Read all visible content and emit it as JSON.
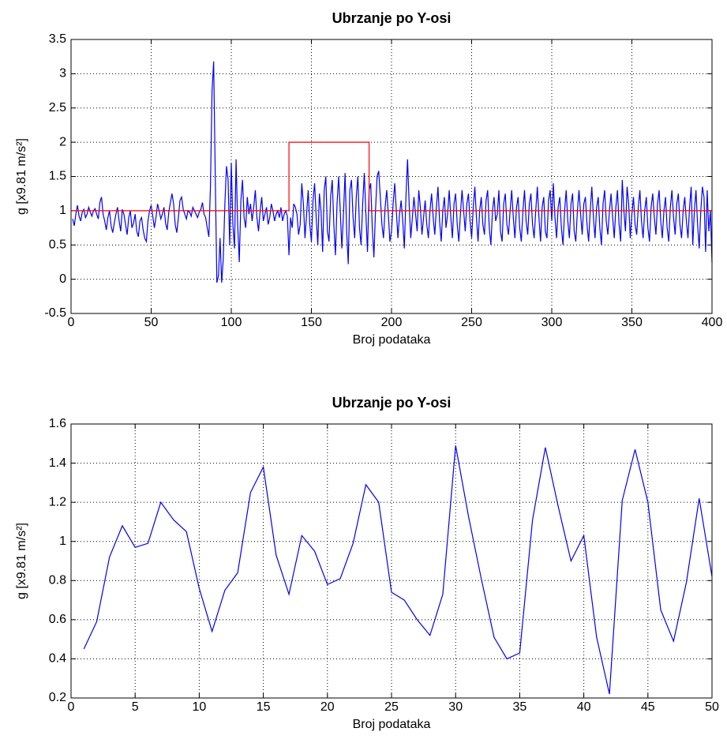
{
  "chart_data": [
    {
      "type": "line",
      "title": "Ubrzanje po Y-osi",
      "xlabel": "Broj podataka",
      "ylabel": "g [x9.81 m/s²]",
      "xlim": [
        0,
        400
      ],
      "xticks": [
        0,
        50,
        100,
        150,
        200,
        250,
        300,
        350,
        400
      ],
      "ylim": [
        -0.5,
        3.5
      ],
      "yticks": [
        -0.5,
        0,
        0.5,
        1,
        1.5,
        2,
        2.5,
        3,
        3.5
      ],
      "grid": true,
      "series": [
        {
          "color": "#0000ff",
          "x": [
            1,
            2,
            3,
            4,
            5,
            6,
            7,
            8,
            9,
            10,
            11,
            12,
            13,
            14,
            15,
            16,
            17,
            18,
            19,
            20,
            21,
            22,
            23,
            24,
            25,
            26,
            27,
            28,
            29,
            30,
            31,
            32,
            33,
            34,
            35,
            36,
            37,
            38,
            39,
            40,
            41,
            42,
            43,
            44,
            45,
            46,
            47,
            48,
            49,
            50,
            51,
            52,
            53,
            54,
            55,
            56,
            57,
            58,
            59,
            60,
            61,
            62,
            63,
            64,
            65,
            66,
            67,
            68,
            69,
            70,
            71,
            72,
            73,
            74,
            75,
            76,
            77,
            78,
            79,
            80,
            81,
            82,
            83,
            84,
            85,
            86,
            87,
            88,
            89,
            90,
            91,
            92,
            93,
            94,
            95,
            96,
            97,
            98,
            99,
            100,
            101,
            102,
            103,
            104,
            105,
            106,
            107,
            108,
            109,
            110,
            111,
            112,
            113,
            114,
            115,
            116,
            117,
            118,
            119,
            120,
            121,
            122,
            123,
            124,
            125,
            126,
            127,
            128,
            129,
            130,
            131,
            132,
            133,
            134,
            135,
            136,
            137,
            138,
            139,
            140,
            141,
            142,
            143,
            144,
            145,
            146,
            147,
            148,
            149,
            150,
            151,
            152,
            153,
            154,
            155,
            156,
            157,
            158,
            159,
            160,
            161,
            162,
            163,
            164,
            165,
            166,
            167,
            168,
            169,
            170,
            171,
            172,
            173,
            174,
            175,
            176,
            177,
            178,
            179,
            180,
            181,
            182,
            183,
            184,
            185,
            186,
            187,
            188,
            189,
            190,
            191,
            192,
            193,
            194,
            195,
            196,
            197,
            198,
            199,
            200,
            201,
            202,
            203,
            204,
            205,
            206,
            207,
            208,
            209,
            210,
            211,
            212,
            213,
            214,
            215,
            216,
            217,
            218,
            219,
            220,
            221,
            222,
            223,
            224,
            225,
            226,
            227,
            228,
            229,
            230,
            231,
            232,
            233,
            234,
            235,
            236,
            237,
            238,
            239,
            240,
            241,
            242,
            243,
            244,
            245,
            246,
            247,
            248,
            249,
            250,
            251,
            252,
            253,
            254,
            255,
            256,
            257,
            258,
            259,
            260,
            261,
            262,
            263,
            264,
            265,
            266,
            267,
            268,
            269,
            270,
            271,
            272,
            273,
            274,
            275,
            276,
            277,
            278,
            279,
            280,
            281,
            282,
            283,
            284,
            285,
            286,
            287,
            288,
            289,
            290,
            291,
            292,
            293,
            294,
            295,
            296,
            297,
            298,
            299,
            300,
            301,
            302,
            303,
            304,
            305,
            306,
            307,
            308,
            309,
            310,
            311,
            312,
            313,
            314,
            315,
            316,
            317,
            318,
            319,
            320,
            321,
            322,
            323,
            324,
            325,
            326,
            327,
            328,
            329,
            330,
            331,
            332,
            333,
            334,
            335,
            336,
            337,
            338,
            339,
            340,
            341,
            342,
            343,
            344,
            345,
            346,
            347,
            348,
            349,
            350,
            351,
            352,
            353,
            354,
            355,
            356,
            357,
            358,
            359,
            360,
            361,
            362,
            363,
            364,
            365,
            366,
            367,
            368,
            369,
            370,
            371,
            372,
            373,
            374,
            375,
            376,
            377,
            378,
            379,
            380,
            381,
            382,
            383,
            384,
            385,
            386,
            387,
            388,
            389,
            390,
            391,
            392,
            393,
            394,
            395,
            396,
            397,
            398,
            399,
            400
          ],
          "values": [
            0.88,
            0.78,
            0.95,
            1.08,
            0.92,
            0.85,
            0.98,
            1.02,
            0.9,
            0.95,
            1.05,
            0.98,
            0.92,
            1.0,
            1.03,
            0.95,
            0.88,
            1.12,
            1.2,
            0.95,
            0.85,
            0.72,
            0.9,
            1.0,
            0.78,
            0.68,
            0.82,
            0.95,
            1.05,
            0.85,
            0.7,
            1.02,
            0.95,
            0.8,
            0.65,
            0.9,
            1.0,
            0.75,
            0.82,
            0.95,
            0.7,
            0.62,
            0.85,
            0.9,
            0.72,
            0.6,
            0.55,
            0.85,
            1.0,
            1.08,
            0.92,
            0.75,
            0.9,
            1.1,
            1.0,
            0.88,
            0.95,
            1.05,
            0.82,
            0.72,
            0.98,
            1.12,
            1.25,
            1.1,
            0.8,
            0.68,
            0.9,
            1.15,
            1.2,
            1.02,
            0.95,
            0.88,
            1.0,
            0.98,
            0.92,
            1.05,
            1.0,
            0.95,
            0.9,
            0.98,
            1.02,
            1.12,
            0.95,
            0.9,
            0.75,
            0.62,
            1.35,
            2.75,
            3.18,
            1.5,
            -0.05,
            0.05,
            0.6,
            -0.05,
            0.3,
            1.1,
            1.65,
            1.45,
            0.5,
            1.7,
            0.8,
            0.45,
            1.75,
            0.8,
            0.25,
            1.15,
            1.45,
            0.9,
            0.75,
            1.2,
            0.95,
            1.1,
            0.85,
            1.05,
            1.3,
            0.9,
            0.7,
            1.0,
            1.2,
            0.85,
            0.95,
            1.05,
            0.8,
            0.9,
            1.1,
            1.0,
            0.85,
            0.95,
            1.0,
            0.9,
            1.05,
            0.85,
            0.95,
            1.0,
            0.92,
            0.35,
            0.9,
            0.75,
            1.1,
            1.05,
            0.95,
            0.65,
            0.8,
            1.4,
            1.1,
            0.6,
            0.95,
            1.3,
            0.8,
            0.55,
            1.15,
            1.4,
            0.9,
            0.5,
            1.25,
            1.0,
            0.4,
            1.3,
            1.5,
            0.7,
            0.55,
            1.2,
            1.45,
            0.8,
            0.35,
            1.1,
            1.5,
            1.0,
            0.45,
            0.95,
            1.55,
            0.7,
            0.22,
            1.3,
            1.45,
            0.9,
            0.6,
            1.2,
            1.5,
            0.75,
            0.5,
            1.1,
            1.55,
            0.95,
            0.4,
            1.3,
            1.4,
            0.75,
            0.32,
            1.0,
            1.5,
            1.58,
            1.2,
            0.8,
            0.6,
            1.05,
            1.3,
            0.95,
            0.55,
            0.7,
            1.1,
            1.4,
            1.0,
            0.6,
            0.95,
            1.15,
            0.85,
            0.45,
            1.2,
            1.75,
            1.1,
            0.6,
            0.9,
            1.2,
            0.95,
            0.7,
            1.3,
            1.05,
            0.65,
            0.9,
            1.15,
            0.8,
            0.6,
            1.0,
            1.25,
            0.9,
            0.65,
            1.05,
            1.35,
            0.85,
            0.55,
            1.0,
            1.2,
            0.75,
            0.95,
            1.3,
            0.9,
            0.6,
            1.1,
            1.25,
            0.8,
            0.55,
            0.95,
            1.3,
            1.0,
            0.7,
            1.1,
            1.25,
            0.85,
            0.6,
            1.05,
            1.35,
            0.9,
            0.55,
            1.0,
            1.2,
            0.8,
            0.65,
            1.15,
            1.3,
            0.75,
            0.5,
            1.0,
            1.2,
            0.85,
            0.95,
            1.3,
            0.7,
            0.55,
            1.1,
            1.25,
            0.8,
            0.65,
            1.0,
            1.3,
            0.9,
            0.6,
            1.05,
            1.2,
            0.75,
            0.55,
            1.0,
            1.3,
            0.85,
            0.65,
            1.1,
            1.25,
            0.8,
            0.6,
            1.0,
            1.35,
            0.9,
            0.55,
            1.05,
            1.2,
            0.7,
            0.6,
            1.15,
            1.3,
            0.85,
            1.4,
            0.9,
            0.6,
            1.05,
            1.2,
            0.75,
            0.5,
            1.0,
            1.3,
            0.85,
            0.6,
            1.1,
            1.25,
            0.7,
            0.55,
            1.0,
            1.3,
            0.95,
            0.65,
            1.1,
            1.2,
            0.8,
            0.55,
            1.0,
            1.35,
            0.9,
            0.6,
            1.05,
            1.2,
            0.75,
            0.5,
            1.1,
            1.3,
            0.85,
            0.65,
            1.0,
            1.25,
            0.9,
            0.6,
            1.05,
            1.3,
            0.8,
            0.55,
            1.45,
            1.0,
            0.7,
            1.35,
            1.1,
            0.6,
            0.95,
            1.2,
            0.8,
            0.65,
            1.05,
            1.3,
            0.85,
            0.6,
            1.0,
            1.2,
            0.75,
            0.55,
            1.05,
            1.25,
            0.9,
            0.65,
            1.1,
            1.3,
            0.85,
            0.6,
            1.0,
            1.2,
            0.75,
            0.55,
            1.05,
            1.3,
            0.9,
            0.65,
            1.1,
            1.25,
            0.8,
            0.6,
            1.0,
            1.2,
            0.85,
            0.6,
            1.05,
            1.35,
            0.5,
            1.0,
            1.3,
            0.8,
            0.45,
            1.0,
            1.35,
            1.2,
            0.4,
            1.3,
            0.7,
            1.0,
            0.25
          ]
        },
        {
          "color": "#ff0000",
          "x": [
            0,
            136,
            136,
            186,
            186,
            400
          ],
          "values": [
            1,
            1,
            2,
            2,
            1,
            1
          ]
        }
      ]
    },
    {
      "type": "line",
      "title": "Ubrzanje po Y-osi",
      "xlabel": "Broj podataka",
      "ylabel": "g [x9.81 m/s²]",
      "xlim": [
        0,
        50
      ],
      "xticks": [
        0,
        5,
        10,
        15,
        20,
        25,
        30,
        35,
        40,
        45,
        50
      ],
      "ylim": [
        0.2,
        1.6
      ],
      "yticks": [
        0.2,
        0.4,
        0.6,
        0.8,
        1,
        1.2,
        1.4,
        1.6
      ],
      "grid": true,
      "series": [
        {
          "color": "#0000ff",
          "x": [
            1,
            2,
            3,
            4,
            5,
            6,
            7,
            8,
            9,
            10,
            11,
            12,
            13,
            14,
            15,
            16,
            17,
            18,
            19,
            20,
            21,
            22,
            23,
            24,
            25,
            26,
            27,
            28,
            29,
            30,
            31,
            32,
            33,
            34,
            35,
            36,
            37,
            38,
            39,
            40,
            41,
            42,
            43,
            44,
            45,
            46,
            47,
            48,
            49,
            50
          ],
          "values": [
            0.45,
            0.59,
            0.92,
            1.08,
            0.97,
            0.99,
            1.2,
            1.11,
            1.05,
            0.76,
            0.54,
            0.75,
            0.84,
            1.25,
            1.38,
            0.93,
            0.73,
            1.03,
            0.95,
            0.78,
            0.81,
            0.99,
            1.29,
            1.2,
            0.74,
            0.7,
            0.6,
            0.52,
            0.73,
            1.49,
            1.13,
            0.81,
            0.51,
            0.4,
            0.43,
            1.11,
            1.48,
            1.18,
            0.9,
            1.03,
            0.51,
            0.22,
            1.21,
            1.47,
            1.2,
            0.65,
            0.49,
            0.79,
            1.22,
            0.82
          ]
        }
      ]
    }
  ]
}
